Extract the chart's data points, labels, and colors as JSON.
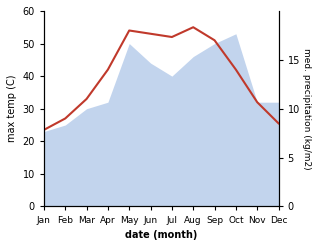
{
  "months": [
    "Jan",
    "Feb",
    "Mar",
    "Apr",
    "May",
    "Jun",
    "Jul",
    "Aug",
    "Sep",
    "Oct",
    "Nov",
    "Dec"
  ],
  "max_temp": [
    23.5,
    27.0,
    33.0,
    42.0,
    54.0,
    53.0,
    52.0,
    55.0,
    51.0,
    42.0,
    32.0,
    25.5
  ],
  "precipitation": [
    23.0,
    25.0,
    30.0,
    32.0,
    50.0,
    44.0,
    40.0,
    46.0,
    50.0,
    53.0,
    32.0,
    32.0
  ],
  "temp_ylim": [
    0,
    60
  ],
  "precip_ylim": [
    0,
    60
  ],
  "right_ylim": [
    0,
    20
  ],
  "temp_yticks": [
    0,
    10,
    20,
    30,
    40,
    50,
    60
  ],
  "right_yticks": [
    0,
    5,
    10,
    15
  ],
  "temp_color": "#c0392b",
  "precip_fill_color": "#aec6e8",
  "precip_fill_alpha": 0.75,
  "xlabel": "date (month)",
  "ylabel_left": "max temp (C)",
  "ylabel_right": "med. precipitation (kg/m2)",
  "fig_width": 3.18,
  "fig_height": 2.47,
  "dpi": 100
}
